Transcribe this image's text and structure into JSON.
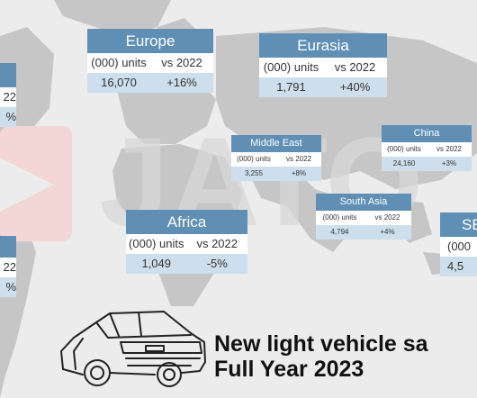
{
  "regions": {
    "europe": {
      "name": "Europe",
      "units_label": "(000) units",
      "vs_label": "vs 2022",
      "units": "16,070",
      "change": "+16%"
    },
    "eurasia": {
      "name": "Eurasia",
      "units_label": "(000) units",
      "vs_label": "vs 2022",
      "units": "1,791",
      "change": "+40%"
    },
    "middle_east": {
      "name": "Middle East",
      "units_label": "(000) units",
      "vs_label": "vs 2022",
      "units": "3,255",
      "change": "+8%"
    },
    "china": {
      "name": "China",
      "units_label": "(000) units",
      "vs_label": "vs 2022",
      "units": "24,160",
      "change": "+3%"
    },
    "south_asia": {
      "name": "South Asia",
      "units_label": "(000) units",
      "vs_label": "vs 2022",
      "units": "4,794",
      "change": "+4%"
    },
    "africa": {
      "name": "Africa",
      "units_label": "(000) units",
      "vs_label": "vs 2022",
      "units": "1,049",
      "change": "-5%"
    },
    "sea": {
      "name": "SE",
      "units_label": "(000",
      "units": "4,5"
    },
    "left_top": {
      "units_label": "22",
      "change": "%"
    },
    "left_bottom": {
      "units_label": "22",
      "change": "%"
    }
  },
  "watermark": "JATO",
  "title_line1": "New light vehicle sa",
  "title_line2": "Full Year 2023",
  "colors": {
    "header": "#5f8fb4",
    "value_row": "#cddfec",
    "map_land": "#c9c9c9",
    "background": "#ececec"
  }
}
